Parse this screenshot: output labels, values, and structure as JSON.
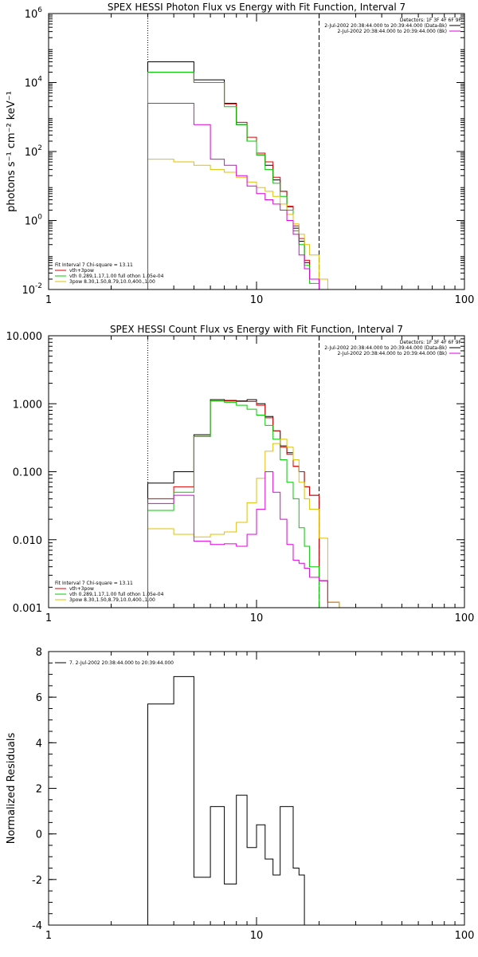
{
  "chart_data": [
    {
      "type": "line",
      "title": "SPEX HESSI Photon Flux vs Energy with Fit Function, Interval 7",
      "ylabel": "photons s⁻¹ cm⁻² keV⁻¹",
      "xlabel": "",
      "xscale": "log",
      "yscale": "log",
      "xlim": [
        1,
        100
      ],
      "ylim": [
        0.01,
        1000000
      ],
      "xticks": [
        {
          "value": 1,
          "label": "1"
        },
        {
          "value": 10,
          "label": "10"
        },
        {
          "value": 100,
          "label": "100"
        }
      ],
      "yticks": [
        {
          "value": 0.01,
          "base": "10",
          "exp": "-2"
        },
        {
          "value": 1,
          "base": "10",
          "exp": "0"
        },
        {
          "value": 100,
          "base": "10",
          "exp": "2"
        },
        {
          "value": 10000,
          "base": "10",
          "exp": "4"
        },
        {
          "value": 1000000,
          "base": "10",
          "exp": "6"
        }
      ],
      "vlines": [
        {
          "x": 3,
          "style": "dotted"
        },
        {
          "x": 20,
          "style": "dashed"
        }
      ],
      "legend_right": [
        {
          "text": "Detectors: 1F 3F 4F 6F 9F",
          "color": ""
        },
        {
          "text": "2-Jul-2002 20:38:44.000 to 20:39:44.000 (Data-Bk)",
          "color": "#000000"
        },
        {
          "text": "2-Jul-2002 20:38:44.000 to 20:39:44.000 (Bk)",
          "color": "#e000e0"
        }
      ],
      "legend_left": [
        {
          "text": "Fit Interval 7    Chi-square = 13.11",
          "color": ""
        },
        {
          "text": "vth+3pow",
          "color": "#e00000"
        },
        {
          "text": "vth 0.289,1.17,1.00  full othon 1.05e-04",
          "color": "#00cc00"
        },
        {
          "text": "3pow 8.30,1.50,8.79,10.0,400.,1.00",
          "color": "#e0c000"
        }
      ],
      "edges": [
        3,
        4,
        5,
        6,
        7,
        8,
        9,
        10,
        11,
        12,
        13,
        14,
        15,
        16,
        17,
        18,
        20,
        22,
        25
      ],
      "series": [
        {
          "name": "Data-Bk",
          "color": "#000000",
          "values": [
            40000,
            40000,
            12000,
            12000,
            2500,
            600,
            200,
            80,
            40,
            15,
            7,
            2.5,
            0.6,
            0.25,
            0.06,
            0.02,
            null,
            null
          ]
        },
        {
          "name": "vth+3pow",
          "color": "#e00000",
          "values": [
            20000,
            20000,
            10000,
            10000,
            2400,
            700,
            260,
            90,
            50,
            18,
            7,
            2.6,
            0.7,
            0.3,
            0.07,
            0.02,
            0.01,
            null
          ]
        },
        {
          "name": "vth",
          "color": "#00cc00",
          "values": [
            20000,
            20000,
            10000,
            10000,
            2000,
            600,
            200,
            80,
            30,
            12,
            5,
            2,
            0.5,
            0.2,
            0.05,
            0.015,
            null,
            null
          ]
        },
        {
          "name": "3pow",
          "color": "#e0c000",
          "values": [
            60,
            50,
            40,
            30,
            25,
            18,
            13,
            9,
            7,
            5,
            3,
            1.5,
            0.8,
            0.4,
            0.2,
            0.1,
            0.02,
            null
          ]
        },
        {
          "name": "Bk",
          "color": "#e000e0",
          "values": [
            2500,
            2500,
            600,
            60,
            40,
            20,
            10,
            6,
            4,
            3,
            2,
            1,
            0.4,
            0.1,
            0.04,
            0.02,
            null,
            null
          ]
        }
      ]
    },
    {
      "type": "line",
      "title": "SPEX HESSI Count Flux vs Energy with Fit Function, Interval 7",
      "ylabel": "",
      "xlabel": "",
      "xscale": "log",
      "yscale": "log",
      "xlim": [
        1,
        100
      ],
      "ylim": [
        0.001,
        10
      ],
      "xticks": [
        {
          "value": 1,
          "label": "1"
        },
        {
          "value": 10,
          "label": "10"
        },
        {
          "value": 100,
          "label": "100"
        }
      ],
      "yticks": [
        {
          "value": 0.001,
          "label": "0.001"
        },
        {
          "value": 0.01,
          "label": "0.010"
        },
        {
          "value": 0.1,
          "label": "0.100"
        },
        {
          "value": 1,
          "label": "1.000"
        },
        {
          "value": 10,
          "label": "10.000"
        }
      ],
      "vlines": [
        {
          "x": 3,
          "style": "dotted"
        },
        {
          "x": 20,
          "style": "dashed"
        }
      ],
      "legend_right": [
        {
          "text": "Detectors: 1F 3F 4F 6F 9F",
          "color": ""
        },
        {
          "text": "2-Jul-2002 20:38:44.000 to 20:39:44.000 (Data-Bk)",
          "color": "#000000"
        },
        {
          "text": "2-Jul-2002 20:38:44.000 to 20:39:44.000 (Bk)",
          "color": "#e000e0"
        }
      ],
      "legend_left": [
        {
          "text": "Fit Interval 7    Chi-square = 13.11",
          "color": ""
        },
        {
          "text": "vth+3pow",
          "color": "#e00000"
        },
        {
          "text": "vth 0.289,1.17,1.00  full othon 1.05e-04",
          "color": "#00cc00"
        },
        {
          "text": "3pow 8.30,1.50,8.79,10.0,400.,1.00",
          "color": "#e0c000"
        }
      ],
      "edges": [
        3,
        4,
        5,
        6,
        7,
        8,
        9,
        10,
        11,
        12,
        13,
        14,
        15,
        16,
        17,
        18,
        20,
        22,
        25
      ],
      "series": [
        {
          "name": "Data-Bk",
          "color": "#000000",
          "values": [
            0.068,
            0.1,
            0.35,
            1.15,
            1.12,
            1.1,
            1.15,
            1.0,
            0.65,
            0.4,
            0.24,
            0.19,
            0.12,
            0.1,
            0.06,
            0.045,
            0.0025,
            0.0012
          ]
        },
        {
          "name": "vth+3pow",
          "color": "#e00000",
          "values": [
            0.04,
            0.06,
            0.33,
            1.1,
            1.1,
            1.08,
            1.08,
            0.95,
            0.62,
            0.4,
            0.23,
            0.18,
            0.12,
            0.1,
            0.06,
            0.045,
            0.0025,
            0.0012
          ]
        },
        {
          "name": "vth",
          "color": "#00cc00",
          "values": [
            0.027,
            0.05,
            0.33,
            1.1,
            1.05,
            0.95,
            0.83,
            0.68,
            0.48,
            0.3,
            0.15,
            0.07,
            0.04,
            0.015,
            0.008,
            0.004,
            0.001,
            null
          ]
        },
        {
          "name": "3pow",
          "color": "#e0c000",
          "values": [
            0.0145,
            0.012,
            0.011,
            0.012,
            0.013,
            0.018,
            0.035,
            0.08,
            0.2,
            0.26,
            0.3,
            0.23,
            0.15,
            0.07,
            0.04,
            0.028,
            0.0105,
            0.0012
          ]
        },
        {
          "name": "Bk",
          "color": "#e000e0",
          "values": [
            0.034,
            0.045,
            0.0095,
            0.0085,
            0.0087,
            0.008,
            0.012,
            0.028,
            0.1,
            0.05,
            0.02,
            0.0085,
            0.005,
            0.0045,
            0.0038,
            0.0028,
            0.0025,
            null
          ]
        }
      ]
    },
    {
      "type": "line",
      "title": "",
      "ylabel": "Normalized Residuals",
      "xlabel": "",
      "xscale": "log",
      "yscale": "linear",
      "xlim": [
        1,
        100
      ],
      "ylim": [
        -4,
        8
      ],
      "xticks": [
        {
          "value": 1,
          "label": "1"
        },
        {
          "value": 10,
          "label": "10"
        },
        {
          "value": 100,
          "label": "100"
        }
      ],
      "yticks": [
        {
          "value": -4,
          "label": "-4"
        },
        {
          "value": -2,
          "label": "-2"
        },
        {
          "value": 0,
          "label": "0"
        },
        {
          "value": 2,
          "label": "2"
        },
        {
          "value": 4,
          "label": "4"
        },
        {
          "value": 6,
          "label": "6"
        },
        {
          "value": 8,
          "label": "8"
        }
      ],
      "vlines": [],
      "legend_right": [],
      "legend_left": [
        {
          "text": "7.  2-Jul-2002 20:38:44.000 to 20:39:44.000",
          "color": "#000000"
        }
      ],
      "edges": [
        3,
        4,
        5,
        6,
        7,
        8,
        9,
        10,
        11,
        12,
        13,
        14,
        15,
        16,
        17,
        18,
        20
      ],
      "series": [
        {
          "name": "residuals",
          "color": "#000000",
          "values": [
            5.7,
            6.9,
            -1.9,
            1.2,
            -2.2,
            1.7,
            -0.6,
            0.4,
            -1.1,
            -1.8,
            1.2,
            1.2,
            -1.5,
            -1.8,
            null,
            null
          ]
        }
      ]
    }
  ]
}
